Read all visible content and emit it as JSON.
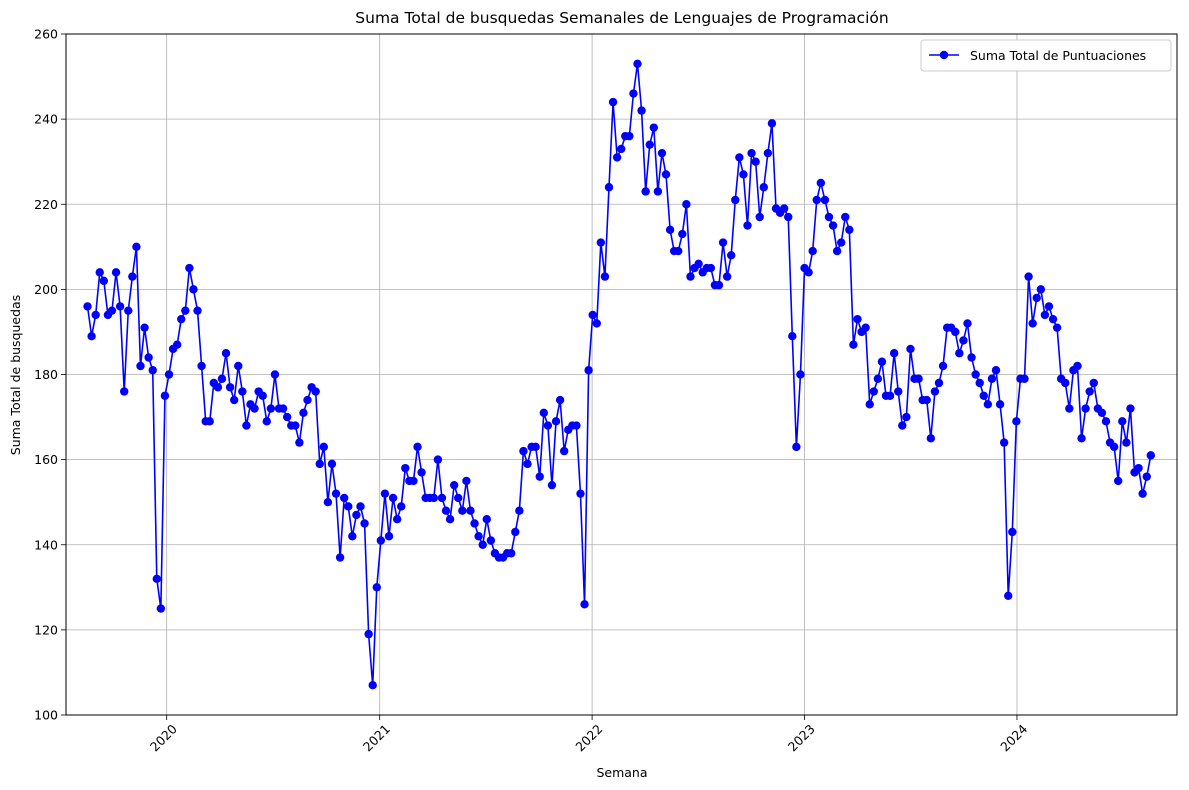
{
  "chart_data": {
    "type": "line",
    "title": "Suma Total de busquedas Semanales de Lenguajes de Programación",
    "xlabel": "Semana",
    "ylabel": "Suma Total de busquedas",
    "ylim": [
      100,
      260
    ],
    "xlim": [
      "2019-07-12",
      "2024-10-02"
    ],
    "grid": true,
    "legend_position": "top-right",
    "x_ticks": [
      "2020",
      "2021",
      "2022",
      "2023",
      "2024"
    ],
    "y_ticks": [
      100,
      120,
      140,
      160,
      180,
      200,
      220,
      240,
      260
    ],
    "series": [
      {
        "name": "Suma Total de Puntuaciones",
        "color": "#0000ff",
        "marker": "circle",
        "start_date": "2019-08-18",
        "interval_days": 7,
        "values": [
          196,
          189,
          194,
          204,
          202,
          194,
          195,
          204,
          196,
          176,
          195,
          203,
          210,
          182,
          191,
          184,
          181,
          132,
          125,
          175,
          180,
          186,
          187,
          193,
          195,
          205,
          200,
          195,
          182,
          169,
          169,
          178,
          177,
          179,
          185,
          177,
          174,
          182,
          176,
          168,
          173,
          172,
          176,
          175,
          169,
          172,
          180,
          172,
          172,
          170,
          168,
          168,
          164,
          171,
          174,
          177,
          176,
          159,
          163,
          150,
          159,
          152,
          137,
          151,
          149,
          142,
          147,
          149,
          145,
          119,
          107,
          130,
          141,
          152,
          142,
          151,
          146,
          149,
          158,
          155,
          155,
          163,
          157,
          151,
          151,
          151,
          160,
          151,
          148,
          146,
          154,
          151,
          148,
          155,
          148,
          145,
          142,
          140,
          146,
          141,
          138,
          137,
          137,
          138,
          138,
          143,
          148,
          162,
          159,
          163,
          163,
          156,
          171,
          168,
          154,
          169,
          174,
          162,
          167,
          168,
          168,
          152,
          126,
          181,
          194,
          192,
          211,
          203,
          224,
          244,
          231,
          233,
          236,
          236,
          246,
          253,
          242,
          223,
          234,
          238,
          223,
          232,
          227,
          214,
          209,
          209,
          213,
          220,
          203,
          205,
          206,
          204,
          205,
          205,
          201,
          201,
          211,
          203,
          208,
          221,
          231,
          227,
          215,
          232,
          230,
          217,
          224,
          232,
          239,
          219,
          218,
          219,
          217,
          189,
          163,
          180,
          205,
          204,
          209,
          221,
          225,
          221,
          217,
          215,
          209,
          211,
          217,
          214,
          187,
          193,
          190,
          191,
          173,
          176,
          179,
          183,
          175,
          175,
          185,
          176,
          168,
          170,
          186,
          179,
          179,
          174,
          174,
          165,
          176,
          178,
          182,
          191,
          191,
          190,
          185,
          188,
          192,
          184,
          180,
          178,
          175,
          173,
          179,
          181,
          173,
          164,
          128,
          143,
          169,
          179,
          179,
          203,
          192,
          198,
          200,
          194,
          196,
          193,
          191,
          179,
          178,
          172,
          181,
          182,
          165,
          172,
          176,
          178,
          172,
          171,
          169,
          164,
          163,
          155,
          169,
          164,
          172,
          157,
          158,
          152,
          156,
          161
        ]
      }
    ]
  }
}
